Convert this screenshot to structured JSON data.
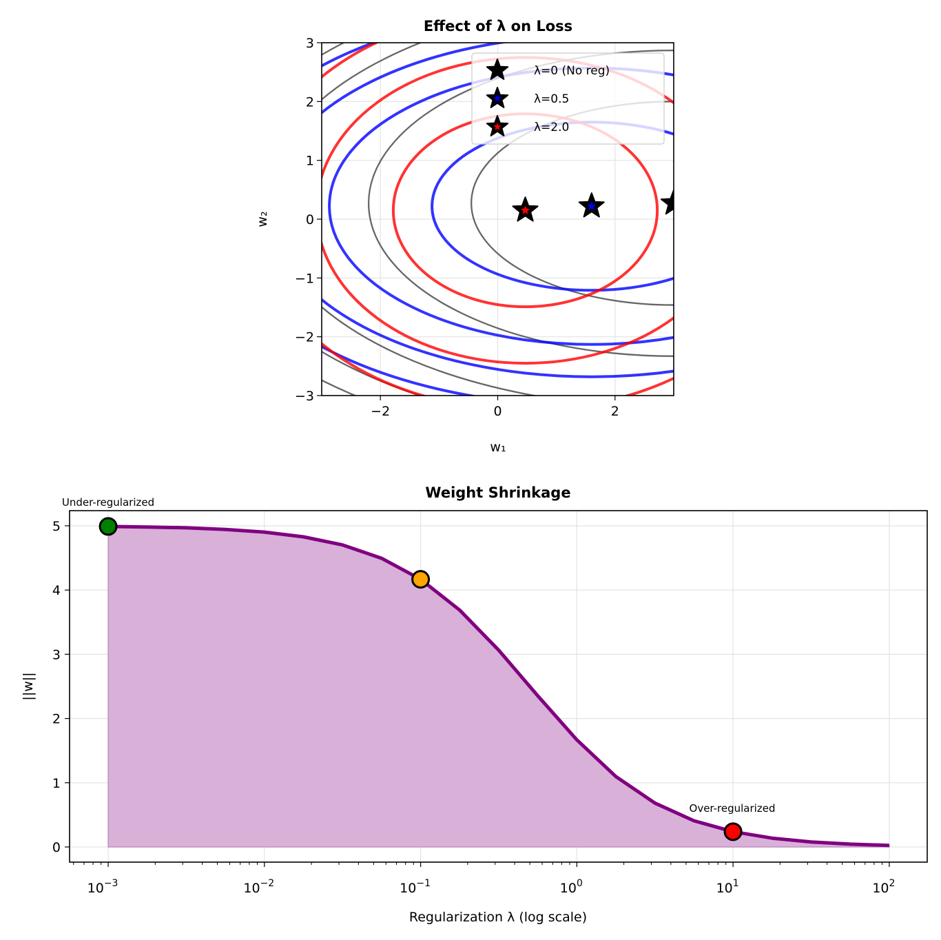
{
  "chart_data": [
    {
      "type": "contour",
      "title": "Effect of λ on Loss",
      "xlabel": "w₁",
      "ylabel": "w₂",
      "xlim": [
        -3,
        3
      ],
      "ylim": [
        -3,
        3
      ],
      "grid": true,
      "x_ticks": [
        -2,
        0,
        2
      ],
      "y_ticks": [
        -3,
        -2,
        -1,
        0,
        1,
        2,
        3
      ],
      "x_tick_labels": [
        "−2",
        "0",
        "2"
      ],
      "y_tick_labels": [
        "−3",
        "−2",
        "−1",
        "0",
        "1",
        "2",
        "3"
      ],
      "legend_position": "upper-right",
      "series": [
        {
          "name": "λ=0 (No reg)",
          "color": "#555555",
          "star_fill": "#000000",
          "minimum": [
            3.0,
            0.27
          ],
          "contour_semi_axes": [
            [
              3.45,
              1.73
            ],
            [
              5.2,
              2.6
            ],
            [
              6.96,
              3.48
            ],
            [
              7.84,
              3.92
            ],
            [
              8.5,
              4.25
            ]
          ]
        },
        {
          "name": "λ=0.5",
          "color": "#0000ff",
          "star_fill": "#0000ff",
          "minimum": [
            1.6,
            0.22
          ],
          "contour_semi_axes": [
            [
              2.72,
              1.43
            ],
            [
              4.47,
              2.35
            ],
            [
              5.5,
              2.9
            ],
            [
              6.46,
              3.4
            ]
          ]
        },
        {
          "name": "λ=2.0",
          "color": "#ff0000",
          "star_fill": "#ff0000",
          "minimum": [
            0.47,
            0.15
          ],
          "contour_semi_axes": [
            [
              2.25,
              1.64
            ],
            [
              3.56,
              2.6
            ],
            [
              4.66,
              3.4
            ],
            [
              5.6,
              4.1
            ]
          ]
        }
      ]
    },
    {
      "type": "area",
      "title": "Weight Shrinkage",
      "xlabel": "Regularization λ (log scale)",
      "ylabel": "||w||",
      "xscale": "log",
      "xlim": [
        0.000566,
        175
      ],
      "ylim": [
        -0.236,
        5.236
      ],
      "grid": true,
      "line_color": "#800080",
      "fill_color": "#d8b0d8",
      "x_ticks": [
        {
          "base": "10",
          "exp": "−3",
          "value": 0.001
        },
        {
          "base": "10",
          "exp": "−2",
          "value": 0.01
        },
        {
          "base": "10",
          "exp": "−1",
          "value": 0.1
        },
        {
          "base": "10",
          "exp": "0",
          "value": 1
        },
        {
          "base": "10",
          "exp": "1",
          "value": 10
        },
        {
          "base": "10",
          "exp": "2",
          "value": 100
        }
      ],
      "y_ticks": [
        0,
        1,
        2,
        3,
        4,
        5
      ],
      "y_tick_labels": [
        "0",
        "1",
        "2",
        "3",
        "4",
        "5"
      ],
      "x": [
        0.001,
        0.001778,
        0.003162,
        0.005623,
        0.01,
        0.01778,
        0.03162,
        0.05623,
        0.1,
        0.1778,
        0.3162,
        0.5623,
        1,
        1.778,
        3.162,
        5.623,
        10,
        17.78,
        31.62,
        56.23,
        100
      ],
      "y": [
        4.99,
        4.982,
        4.969,
        4.944,
        4.902,
        4.828,
        4.703,
        4.495,
        4.167,
        3.688,
        3.063,
        2.353,
        1.667,
        1.097,
        0.683,
        0.408,
        0.238,
        0.137,
        0.078,
        0.044,
        0.025
      ],
      "markers": [
        {
          "x": 0.001,
          "y": 4.99,
          "color": "#008000"
        },
        {
          "x": 0.1,
          "y": 4.167,
          "color": "#ffa500"
        },
        {
          "x": 10,
          "y": 0.238,
          "color": "#ff0000"
        }
      ],
      "annotations": [
        "Under-regularized",
        "Over-regularized"
      ]
    }
  ]
}
